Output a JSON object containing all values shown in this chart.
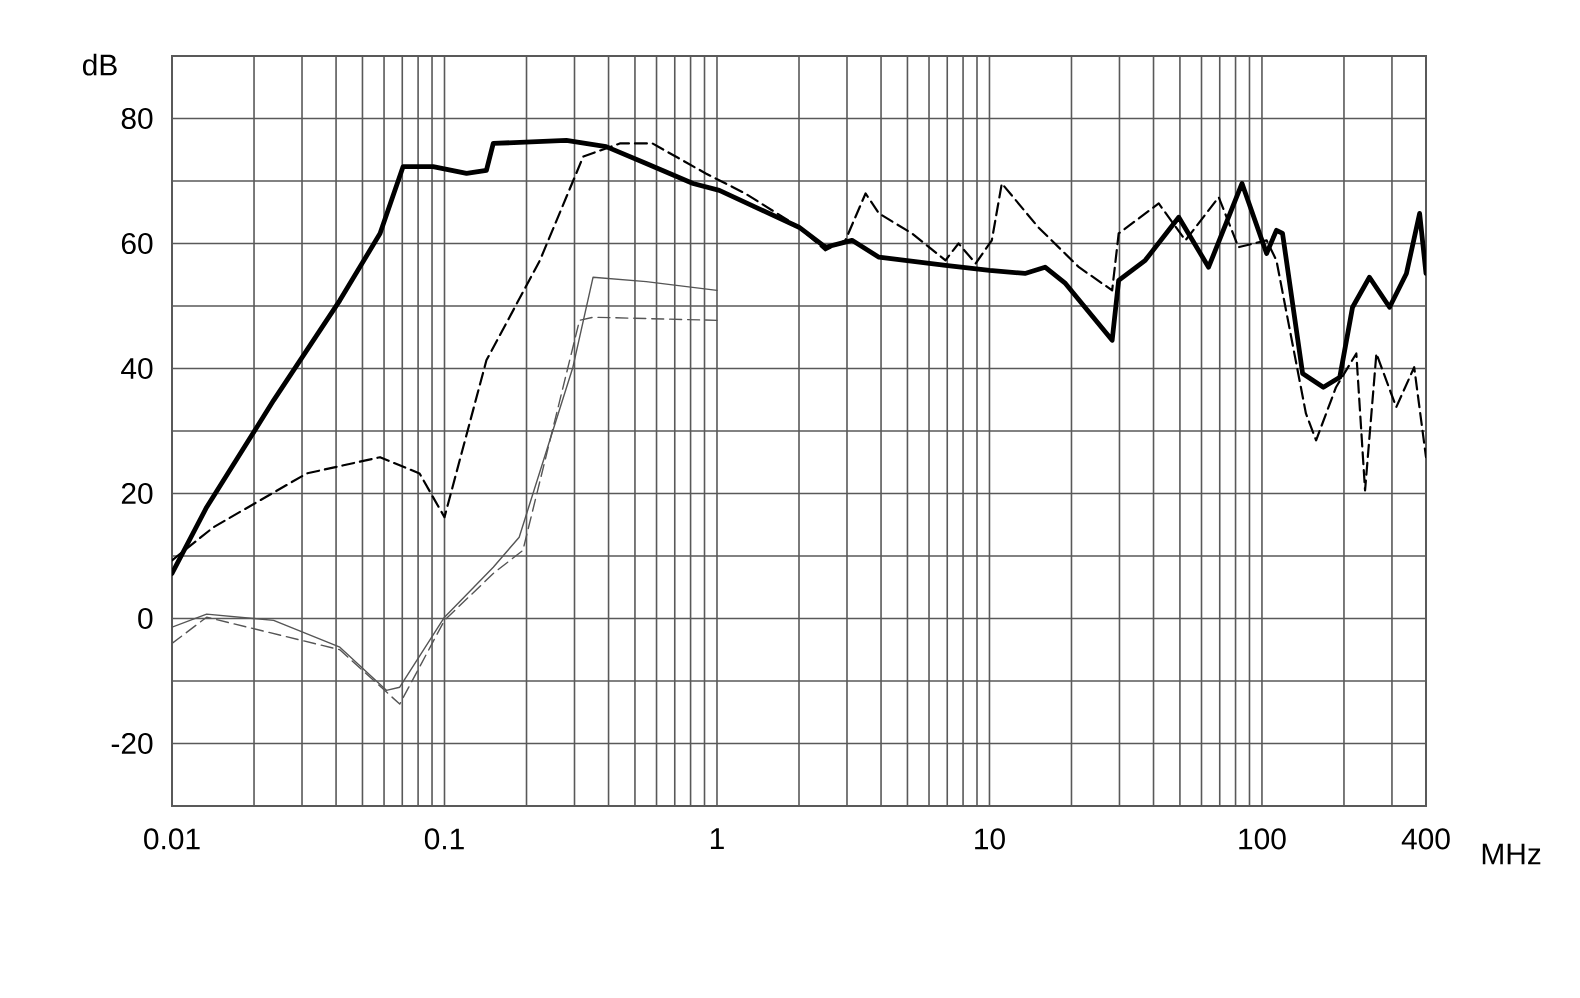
{
  "chart_data": {
    "type": "line",
    "xlabel": "MHz",
    "ylabel": "dB",
    "log": "x",
    "grid": true,
    "marker": "none",
    "xlim": [
      0.01,
      400
    ],
    "ylim": [
      -30,
      90
    ],
    "xticks": [
      0.01,
      {
        "value": 0.02,
        "label": null
      },
      {
        "value": 0.03,
        "label": null
      },
      {
        "value": 0.04,
        "label": null
      },
      {
        "value": 0.05,
        "label": null
      },
      {
        "value": 0.06,
        "label": null
      },
      {
        "value": 0.07,
        "label": null
      },
      {
        "value": 0.08,
        "label": null
      },
      {
        "value": 0.09,
        "label": null
      },
      0.1,
      {
        "value": 0.2,
        "label": null
      },
      {
        "value": 0.3,
        "label": null
      },
      {
        "value": 0.4,
        "label": null
      },
      {
        "value": 0.5,
        "label": null
      },
      {
        "value": 0.6,
        "label": null
      },
      {
        "value": 0.7,
        "label": null
      },
      {
        "value": 0.8,
        "label": null
      },
      {
        "value": 0.9,
        "label": null
      },
      1,
      {
        "value": 2,
        "label": null
      },
      {
        "value": 3,
        "label": null
      },
      {
        "value": 4,
        "label": null
      },
      {
        "value": 5,
        "label": null
      },
      {
        "value": 6,
        "label": null
      },
      {
        "value": 7,
        "label": null
      },
      {
        "value": 8,
        "label": null
      },
      {
        "value": 9,
        "label": null
      },
      10,
      {
        "value": 20,
        "label": null
      },
      {
        "value": 30,
        "label": null
      },
      {
        "value": 40,
        "label": null
      },
      {
        "value": 50,
        "label": null
      },
      {
        "value": 60,
        "label": null
      },
      {
        "value": 70,
        "label": null
      },
      {
        "value": 80,
        "label": null
      },
      {
        "value": 90,
        "label": null
      },
      100,
      {
        "value": 200,
        "label": null
      },
      {
        "value": 300,
        "label": null
      },
      400
    ],
    "yticks": [
      {
        "value": -30,
        "label": null
      },
      -20,
      {
        "value": -10,
        "label": null
      },
      0,
      {
        "value": 10,
        "label": null
      },
      20,
      {
        "value": 30,
        "label": null
      },
      40,
      {
        "value": 50,
        "label": null
      },
      60,
      {
        "value": 70,
        "label": null
      },
      80,
      {
        "value": 90,
        "label": null
      }
    ],
    "series": [
      {
        "color": "#000000",
        "line_style": "solid",
        "x": [
          0.01,
          0.0134,
          0.0236,
          0.0413,
          0.058,
          0.0705,
          0.0908,
          0.1205,
          0.1425,
          0.151,
          0.28,
          0.392,
          0.55,
          0.817,
          1.02,
          2.0,
          2.5,
          3.13,
          3.93,
          6.9,
          10,
          13.5,
          16,
          19,
          28.2,
          29.8,
          37.3,
          49.5,
          63.7,
          84.5,
          104,
          113,
          119,
          141,
          168,
          193,
          215,
          248,
          294,
          339,
          379,
          400
        ],
        "values": [
          7.2,
          17.8,
          34.9,
          50.9,
          61.6,
          72.3,
          72.3,
          71.2,
          71.7,
          76,
          76.5,
          75.5,
          72.8,
          69.6,
          68.5,
          62.6,
          59.4,
          60.5,
          57.8,
          56.5,
          55.7,
          55.2,
          56.2,
          53.6,
          44.5,
          54.1,
          57.3,
          64.2,
          56.2,
          69.6,
          58.4,
          62.1,
          61.6,
          39.2,
          37,
          38.6,
          49.8,
          54.6,
          49.8,
          55.2,
          64.8,
          55.2
        ]
      },
      {
        "color": "#000000",
        "line_style": "dashed",
        "x": [
          0.01,
          0.0142,
          0.0312,
          0.058,
          0.081,
          0.1,
          0.1425,
          0.224,
          0.323,
          0.44,
          0.58,
          0.91,
          1.27,
          2.0,
          2.5,
          2.96,
          3.51,
          3.93,
          5.2,
          6.9,
          7.7,
          8.9,
          10.2,
          11.1,
          15.1,
          21.3,
          28.2,
          29.8,
          41.8,
          52.4,
          69.4,
          82,
          104,
          113,
          145,
          158,
          187,
          222,
          239,
          263,
          311,
          362,
          400
        ],
        "values": [
          9.3,
          14.6,
          23.2,
          25.8,
          23.2,
          16.2,
          41.3,
          57.3,
          73.9,
          76,
          76,
          71.2,
          68,
          62.6,
          58.9,
          60.5,
          68,
          64.8,
          61.6,
          57.3,
          60,
          56.8,
          60.5,
          69.6,
          62.6,
          56.2,
          52.5,
          61.6,
          66.4,
          60.5,
          67.4,
          59.4,
          60.5,
          57.3,
          32.8,
          28.5,
          37,
          42.4,
          20.5,
          42.4,
          33.8,
          40.2,
          25.8
        ]
      },
      {
        "color": "#555555",
        "line_style": "solid",
        "x": [
          0.01,
          0.0134,
          0.0236,
          0.0413,
          0.0612,
          0.0685,
          0.1,
          0.151,
          0.188,
          0.296,
          0.351,
          0.55,
          1.0
        ],
        "values": [
          -1.4,
          0.7,
          -0.3,
          -4.6,
          -11.5,
          -11,
          0.2,
          8.2,
          13,
          40.2,
          54.6,
          53.9,
          52.5
        ]
      },
      {
        "color": "#555555",
        "line_style": "dashed",
        "x": [
          0.01,
          0.0134,
          0.0413,
          0.0685,
          0.1,
          0.151,
          0.194,
          0.313,
          0.351,
          1.0
        ],
        "values": [
          -4,
          0.2,
          -5,
          -13.7,
          -0.3,
          7.2,
          10.9,
          47.7,
          48.2,
          47.7
        ]
      }
    ]
  }
}
